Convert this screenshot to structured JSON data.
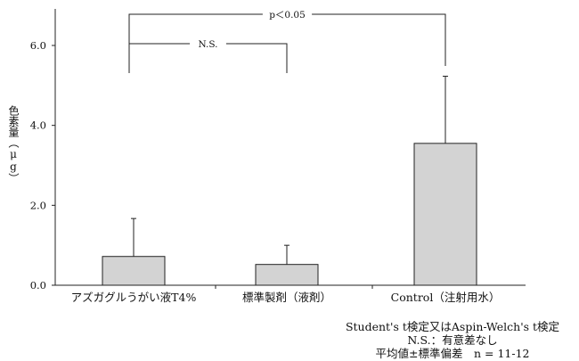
{
  "chart_data": {
    "type": "bar",
    "ylabel": "色素量（μg）",
    "ylim": [
      0,
      6.8
    ],
    "yticks": [
      "0.0",
      "2.0",
      "4.0",
      "6.0"
    ],
    "ytick_values": [
      0,
      2,
      4,
      6
    ],
    "categories": [
      "アズガグルうがい液T4%",
      "標準製剤（液剤）",
      "Control（注射用水）"
    ],
    "values": [
      0.72,
      0.52,
      3.55
    ],
    "errors": [
      0.95,
      0.48,
      1.68
    ],
    "bar_color": "#d3d3d3",
    "significance": [
      {
        "from": 0,
        "to": 1,
        "label": "N.S."
      },
      {
        "from": 0,
        "to": 2,
        "label": "p＜0.05"
      }
    ]
  },
  "notes": {
    "line1": "Student's t検定又はAspin-Welch's t検定",
    "line2": "N.S.：有意差なし",
    "line3": "平均値±標準偏差　n = 11-12"
  }
}
